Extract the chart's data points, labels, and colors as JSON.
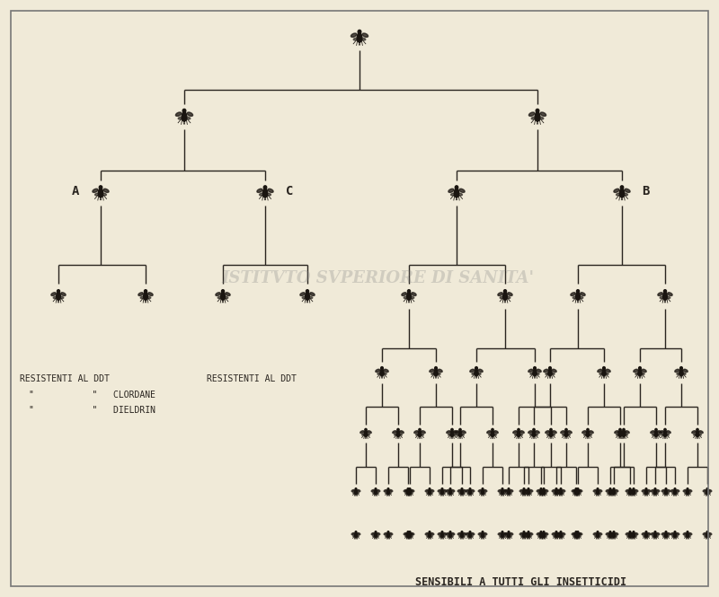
{
  "background_color": "#f0ead8",
  "line_color": "#2a2520",
  "text_color": "#2a2520",
  "border_color": "#888888",
  "label_A": "A",
  "label_B": "B",
  "label_C": "C",
  "text_left_line1": "RESISTENTI AL DDT",
  "text_center_label": "RESISTENTI AL DDT",
  "text_clordane": "\"           \"   CLORDANE",
  "text_dieldrin": "\"           \"   DIELDRIN",
  "text_bottom": "SENSIBILI A TUTTI GLI INSETTICIDI",
  "lw": 1.0
}
